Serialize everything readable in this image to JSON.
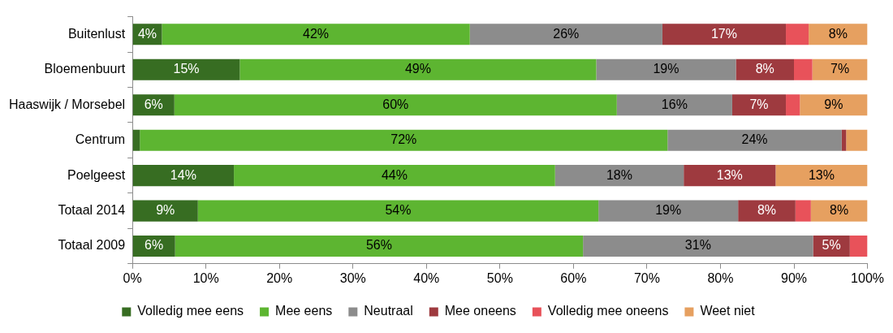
{
  "chart_data": {
    "type": "bar",
    "orientation": "horizontal",
    "stacked": true,
    "categories": [
      "Buitenlust",
      "Bloemenbuurt",
      "Haaswijk / Morsebel",
      "Centrum",
      "Poelgeest",
      "Totaal 2014",
      "Totaal 2009"
    ],
    "series": [
      {
        "name": "Volledig mee eens",
        "color": "#376d22",
        "values": [
          4,
          14.6,
          5.7,
          1.0,
          13.8,
          8.9,
          5.8
        ],
        "value_labels": [
          "4%",
          "15%",
          "6%",
          null,
          "14%",
          "9%",
          "6%"
        ]
      },
      {
        "name": "Mee eens",
        "color": "#5db531",
        "values": [
          41.9,
          48.5,
          60.2,
          71.8,
          43.7,
          54.5,
          55.5
        ],
        "value_labels": [
          "42%",
          "49%",
          "60%",
          "72%",
          "44%",
          "54%",
          "56%"
        ]
      },
      {
        "name": "Neutraal",
        "color": "#8c8c8c",
        "values": [
          26.2,
          19,
          15.7,
          23.7,
          17.5,
          19,
          31.3
        ],
        "value_labels": [
          "26%",
          "19%",
          "16%",
          "24%",
          "18%",
          "19%",
          "31%"
        ]
      },
      {
        "name": "Mee oneens",
        "color": "#9e3a3f",
        "values": [
          16.8,
          7.9,
          7.3,
          0.6,
          12.5,
          7.8,
          5
        ],
        "value_labels": [
          "17%",
          "8%",
          "7%",
          null,
          "13%",
          "8%",
          "5%"
        ]
      },
      {
        "name": "Volledig mee oneens",
        "color": "#e8525a",
        "values": [
          3.1,
          2.5,
          1.9,
          0,
          0,
          2.1,
          2.4
        ],
        "value_labels": [
          null,
          null,
          null,
          null,
          null,
          null,
          null
        ]
      },
      {
        "name": "Weet niet",
        "color": "#e6a060",
        "values": [
          8,
          7.5,
          9.2,
          2.9,
          12.5,
          7.7,
          0
        ],
        "value_labels": [
          "8%",
          "7%",
          "9%",
          null,
          "13%",
          "8%",
          null
        ]
      }
    ],
    "xlim": [
      0,
      100
    ],
    "xticks": [
      {
        "value": 0,
        "label": "0%"
      },
      {
        "value": 10,
        "label": "10%"
      },
      {
        "value": 20,
        "label": "20%"
      },
      {
        "value": 30,
        "label": "30%"
      },
      {
        "value": 40,
        "label": "40%"
      },
      {
        "value": 50,
        "label": "50%"
      },
      {
        "value": 60,
        "label": "60%"
      },
      {
        "value": 70,
        "label": "70%"
      },
      {
        "value": 80,
        "label": "80%"
      },
      {
        "value": 90,
        "label": "90%"
      },
      {
        "value": 100,
        "label": "100%"
      }
    ],
    "grid": false,
    "legend": "bottom"
  }
}
